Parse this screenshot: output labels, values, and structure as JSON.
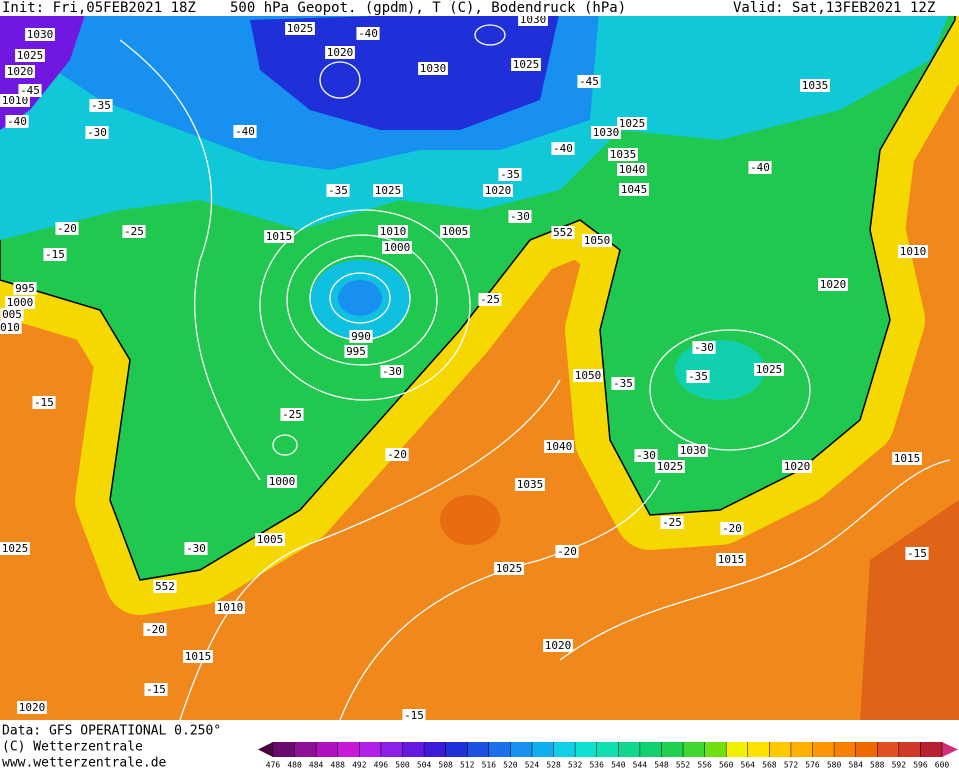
{
  "header": {
    "init": "Init: Fri,05FEB2021 18Z",
    "title": "500 hPa Geopot. (gpdm), T (C), Bodendruck (hPa)",
    "valid": "Valid: Sat,13FEB2021 12Z"
  },
  "footer": {
    "data": "Data: GFS OPERATIONAL 0.250°",
    "copyright": "(C) Wetterzentrale",
    "url": "www.wetterzentrale.de"
  },
  "map": {
    "isobar_labels": [
      "1030",
      "1025",
      "1020",
      "1010",
      "1025",
      "1020",
      "1030",
      "1025",
      "1030",
      "1035",
      "1025",
      "1030",
      "1035",
      "1040",
      "1045",
      "1025",
      "1020",
      "1015",
      "1010",
      "1005",
      "1000",
      "1050",
      "1010",
      "1020",
      "995",
      "1000",
      "005",
      "010",
      "990",
      "995",
      "1050",
      "1025",
      "1040",
      "1030",
      "1025",
      "1020",
      "1015",
      "1000",
      "1035",
      "1005",
      "1025",
      "1025",
      "1015",
      "1010",
      "1015",
      "1020",
      "1020"
    ],
    "temperature_labels": [
      "-40",
      "-45",
      "-35",
      "-40",
      "-30",
      "-40",
      "-45",
      "-40",
      "-35",
      "-35",
      "-30",
      "-40",
      "-20",
      "-25",
      "-15",
      "552",
      "-25",
      "-30",
      "-35",
      "-35",
      "-30",
      "-15",
      "-25",
      "-20",
      "-30",
      "-25",
      "-20",
      "-20",
      "-15",
      "-30",
      "552",
      "-20",
      "-15",
      "-15"
    ]
  },
  "colorbar": {
    "ticks": [
      476,
      480,
      484,
      488,
      492,
      496,
      500,
      504,
      508,
      512,
      516,
      520,
      524,
      528,
      532,
      536,
      540,
      544,
      548,
      552,
      556,
      560,
      564,
      568,
      572,
      576,
      580,
      584,
      588,
      592,
      596,
      600
    ],
    "colors": [
      "#4b0040",
      "#6a0a6e",
      "#8c1096",
      "#b010c0",
      "#c818d8",
      "#b020e8",
      "#8c20e8",
      "#6418e0",
      "#3c18d8",
      "#2030d8",
      "#1c50e0",
      "#1c70e8",
      "#1890f0",
      "#10b0f0",
      "#10d0e8",
      "#10e0d0",
      "#10e0b0",
      "#10d890",
      "#10d070",
      "#20d050",
      "#40d830",
      "#70e010",
      "#f0f000",
      "#ffe000",
      "#ffc800",
      "#ffb000",
      "#ff9800",
      "#f88000",
      "#f06800",
      "#e05020",
      "#d03828",
      "#b82030",
      "#d0307a"
    ]
  }
}
